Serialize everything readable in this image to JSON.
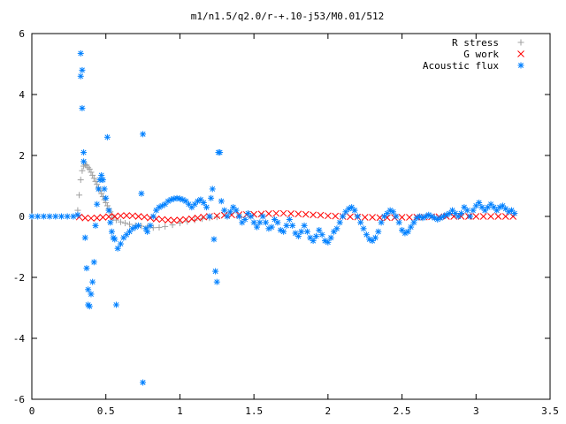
{
  "chart_data": {
    "type": "scatter",
    "title": "m1/n1.5/q2.0/r-+.10-j53/M0.01/512",
    "xlabel": "",
    "ylabel": "",
    "xlim": [
      0,
      3.5
    ],
    "ylim": [
      -6,
      6
    ],
    "x_ticks": [
      "0",
      "0.5",
      "1",
      "1.5",
      "2",
      "2.5",
      "3",
      "3.5"
    ],
    "y_ticks": [
      "6",
      "4",
      "2",
      "0",
      "-2",
      "-4",
      "-6"
    ],
    "legend_position": "top-right",
    "grid": false,
    "series": [
      {
        "name": "R stress",
        "marker": "plus",
        "color": "#a0a0a0",
        "points": [
          [
            0.31,
            0.2
          ],
          [
            0.32,
            0.7
          ],
          [
            0.33,
            1.2
          ],
          [
            0.34,
            1.5
          ],
          [
            0.35,
            1.65
          ],
          [
            0.36,
            1.7
          ],
          [
            0.37,
            1.68
          ],
          [
            0.38,
            1.6
          ],
          [
            0.39,
            1.55
          ],
          [
            0.4,
            1.45
          ],
          [
            0.41,
            1.35
          ],
          [
            0.42,
            1.25
          ],
          [
            0.43,
            1.15
          ],
          [
            0.44,
            1.05
          ],
          [
            0.45,
            0.95
          ],
          [
            0.46,
            0.85
          ],
          [
            0.47,
            0.75
          ],
          [
            0.48,
            0.65
          ],
          [
            0.49,
            0.55
          ],
          [
            0.5,
            0.45
          ],
          [
            0.51,
            0.35
          ],
          [
            0.52,
            0.25
          ],
          [
            0.53,
            0.15
          ],
          [
            0.54,
            0.05
          ],
          [
            0.55,
            -0.05
          ],
          [
            0.57,
            -0.12
          ],
          [
            0.6,
            -0.18
          ],
          [
            0.63,
            -0.22
          ],
          [
            0.66,
            -0.26
          ],
          [
            0.7,
            -0.3
          ],
          [
            0.74,
            -0.32
          ],
          [
            0.78,
            -0.35
          ],
          [
            0.82,
            -0.37
          ],
          [
            0.86,
            -0.36
          ],
          [
            0.9,
            -0.33
          ],
          [
            0.95,
            -0.28
          ],
          [
            1.0,
            -0.22
          ],
          [
            1.05,
            -0.17
          ],
          [
            1.1,
            -0.12
          ],
          [
            1.15,
            -0.08
          ],
          [
            1.2,
            -0.05
          ],
          [
            1.25,
            -0.02
          ]
        ]
      },
      {
        "name": "G work",
        "marker": "cross",
        "color": "#ff0000",
        "points": [
          [
            0.32,
            -0.02
          ],
          [
            0.36,
            -0.05
          ],
          [
            0.4,
            -0.06
          ],
          [
            0.44,
            -0.05
          ],
          [
            0.48,
            -0.03
          ],
          [
            0.52,
            -0.01
          ],
          [
            0.56,
            0.0
          ],
          [
            0.6,
            0.02
          ],
          [
            0.64,
            0.03
          ],
          [
            0.68,
            0.02
          ],
          [
            0.72,
            0.0
          ],
          [
            0.76,
            -0.02
          ],
          [
            0.8,
            -0.05
          ],
          [
            0.84,
            -0.08
          ],
          [
            0.88,
            -0.1
          ],
          [
            0.92,
            -0.12
          ],
          [
            0.96,
            -0.13
          ],
          [
            1.0,
            -0.12
          ],
          [
            1.04,
            -0.1
          ],
          [
            1.08,
            -0.08
          ],
          [
            1.12,
            -0.05
          ],
          [
            1.16,
            -0.02
          ],
          [
            1.2,
            0.0
          ],
          [
            1.25,
            0.02
          ],
          [
            1.3,
            0.04
          ],
          [
            1.35,
            0.05
          ],
          [
            1.4,
            0.06
          ],
          [
            1.45,
            0.06
          ],
          [
            1.5,
            0.07
          ],
          [
            1.55,
            0.08
          ],
          [
            1.6,
            0.09
          ],
          [
            1.65,
            0.1
          ],
          [
            1.7,
            0.1
          ],
          [
            1.75,
            0.09
          ],
          [
            1.8,
            0.08
          ],
          [
            1.85,
            0.07
          ],
          [
            1.9,
            0.05
          ],
          [
            1.95,
            0.04
          ],
          [
            2.0,
            0.02
          ],
          [
            2.05,
            0.01
          ],
          [
            2.1,
            0.0
          ],
          [
            2.15,
            -0.01
          ],
          [
            2.2,
            -0.02
          ],
          [
            2.25,
            -0.03
          ],
          [
            2.3,
            -0.03
          ],
          [
            2.35,
            -0.04
          ],
          [
            2.4,
            -0.04
          ],
          [
            2.45,
            -0.04
          ],
          [
            2.5,
            -0.03
          ],
          [
            2.55,
            -0.03
          ],
          [
            2.6,
            -0.02
          ],
          [
            2.65,
            -0.02
          ],
          [
            2.7,
            -0.01
          ],
          [
            2.75,
            -0.01
          ],
          [
            2.8,
            0.0
          ],
          [
            2.85,
            0.0
          ],
          [
            2.9,
            0.0
          ],
          [
            2.95,
            0.0
          ],
          [
            3.0,
            0.0
          ],
          [
            3.05,
            0.0
          ],
          [
            3.1,
            0.0
          ],
          [
            3.15,
            0.0
          ],
          [
            3.2,
            0.0
          ],
          [
            3.25,
            0.0
          ]
        ]
      },
      {
        "name": "Acoustic flux",
        "marker": "star",
        "color": "#0080ff",
        "points": [
          [
            0.0,
            0.0
          ],
          [
            0.04,
            0.0
          ],
          [
            0.08,
            0.0
          ],
          [
            0.12,
            0.0
          ],
          [
            0.16,
            0.0
          ],
          [
            0.2,
            0.0
          ],
          [
            0.24,
            0.0
          ],
          [
            0.28,
            0.0
          ],
          [
            0.31,
            0.05
          ],
          [
            0.33,
            4.6
          ],
          [
            0.33,
            5.35
          ],
          [
            0.34,
            4.8
          ],
          [
            0.34,
            3.55
          ],
          [
            0.35,
            2.1
          ],
          [
            0.35,
            1.8
          ],
          [
            0.36,
            -0.7
          ],
          [
            0.37,
            -1.7
          ],
          [
            0.38,
            -2.4
          ],
          [
            0.38,
            -2.9
          ],
          [
            0.39,
            -2.95
          ],
          [
            0.4,
            -2.55
          ],
          [
            0.41,
            -2.15
          ],
          [
            0.42,
            -1.5
          ],
          [
            0.43,
            -0.3
          ],
          [
            0.44,
            0.4
          ],
          [
            0.45,
            0.9
          ],
          [
            0.46,
            1.2
          ],
          [
            0.47,
            1.35
          ],
          [
            0.48,
            1.2
          ],
          [
            0.49,
            0.9
          ],
          [
            0.5,
            0.6
          ],
          [
            0.51,
            2.6
          ],
          [
            0.52,
            0.2
          ],
          [
            0.53,
            -0.2
          ],
          [
            0.54,
            -0.5
          ],
          [
            0.55,
            -0.7
          ],
          [
            0.56,
            -0.75
          ],
          [
            0.57,
            -2.9
          ],
          [
            0.58,
            -1.05
          ],
          [
            0.6,
            -0.9
          ],
          [
            0.62,
            -0.7
          ],
          [
            0.64,
            -0.6
          ],
          [
            0.66,
            -0.5
          ],
          [
            0.68,
            -0.4
          ],
          [
            0.7,
            -0.35
          ],
          [
            0.72,
            -0.3
          ],
          [
            0.74,
            0.75
          ],
          [
            0.75,
            2.7
          ],
          [
            0.75,
            -5.45
          ],
          [
            0.77,
            -0.4
          ],
          [
            0.78,
            -0.5
          ],
          [
            0.8,
            -0.3
          ],
          [
            0.82,
            0.0
          ],
          [
            0.84,
            0.2
          ],
          [
            0.86,
            0.3
          ],
          [
            0.88,
            0.35
          ],
          [
            0.9,
            0.4
          ],
          [
            0.92,
            0.5
          ],
          [
            0.94,
            0.55
          ],
          [
            0.96,
            0.58
          ],
          [
            0.98,
            0.6
          ],
          [
            1.0,
            0.58
          ],
          [
            1.02,
            0.55
          ],
          [
            1.04,
            0.5
          ],
          [
            1.06,
            0.4
          ],
          [
            1.08,
            0.3
          ],
          [
            1.1,
            0.4
          ],
          [
            1.12,
            0.5
          ],
          [
            1.14,
            0.55
          ],
          [
            1.16,
            0.45
          ],
          [
            1.18,
            0.3
          ],
          [
            1.2,
            0.0
          ],
          [
            1.21,
            0.6
          ],
          [
            1.22,
            0.9
          ],
          [
            1.23,
            -0.75
          ],
          [
            1.24,
            -1.8
          ],
          [
            1.25,
            -2.15
          ],
          [
            1.26,
            2.1
          ],
          [
            1.27,
            2.1
          ],
          [
            1.28,
            0.5
          ],
          [
            1.3,
            0.2
          ],
          [
            1.32,
            0.0
          ],
          [
            1.34,
            0.15
          ],
          [
            1.36,
            0.3
          ],
          [
            1.38,
            0.2
          ],
          [
            1.4,
            0.0
          ],
          [
            1.42,
            -0.2
          ],
          [
            1.44,
            -0.1
          ],
          [
            1.46,
            0.1
          ],
          [
            1.48,
            0.0
          ],
          [
            1.5,
            -0.2
          ],
          [
            1.52,
            -0.35
          ],
          [
            1.54,
            -0.2
          ],
          [
            1.56,
            0.0
          ],
          [
            1.58,
            -0.2
          ],
          [
            1.6,
            -0.4
          ],
          [
            1.62,
            -0.35
          ],
          [
            1.64,
            -0.1
          ],
          [
            1.66,
            -0.2
          ],
          [
            1.68,
            -0.45
          ],
          [
            1.7,
            -0.5
          ],
          [
            1.72,
            -0.3
          ],
          [
            1.74,
            -0.1
          ],
          [
            1.76,
            -0.3
          ],
          [
            1.78,
            -0.55
          ],
          [
            1.8,
            -0.65
          ],
          [
            1.82,
            -0.5
          ],
          [
            1.84,
            -0.3
          ],
          [
            1.86,
            -0.5
          ],
          [
            1.88,
            -0.7
          ],
          [
            1.9,
            -0.8
          ],
          [
            1.92,
            -0.65
          ],
          [
            1.94,
            -0.45
          ],
          [
            1.96,
            -0.6
          ],
          [
            1.98,
            -0.8
          ],
          [
            2.0,
            -0.85
          ],
          [
            2.02,
            -0.7
          ],
          [
            2.04,
            -0.5
          ],
          [
            2.06,
            -0.4
          ],
          [
            2.08,
            -0.2
          ],
          [
            2.1,
            0.0
          ],
          [
            2.12,
            0.15
          ],
          [
            2.14,
            0.25
          ],
          [
            2.16,
            0.3
          ],
          [
            2.18,
            0.2
          ],
          [
            2.2,
            0.0
          ],
          [
            2.22,
            -0.2
          ],
          [
            2.24,
            -0.4
          ],
          [
            2.26,
            -0.6
          ],
          [
            2.28,
            -0.75
          ],
          [
            2.3,
            -0.8
          ],
          [
            2.32,
            -0.7
          ],
          [
            2.34,
            -0.5
          ],
          [
            2.36,
            -0.2
          ],
          [
            2.38,
            0.0
          ],
          [
            2.4,
            0.1
          ],
          [
            2.42,
            0.2
          ],
          [
            2.44,
            0.15
          ],
          [
            2.46,
            0.0
          ],
          [
            2.48,
            -0.2
          ],
          [
            2.5,
            -0.45
          ],
          [
            2.52,
            -0.55
          ],
          [
            2.54,
            -0.5
          ],
          [
            2.56,
            -0.35
          ],
          [
            2.58,
            -0.2
          ],
          [
            2.6,
            -0.05
          ],
          [
            2.62,
            0.0
          ],
          [
            2.64,
            -0.05
          ],
          [
            2.66,
            0.0
          ],
          [
            2.68,
            0.05
          ],
          [
            2.7,
            0.0
          ],
          [
            2.72,
            -0.05
          ],
          [
            2.74,
            -0.1
          ],
          [
            2.76,
            -0.05
          ],
          [
            2.78,
            0.0
          ],
          [
            2.8,
            0.05
          ],
          [
            2.82,
            0.1
          ],
          [
            2.84,
            0.2
          ],
          [
            2.86,
            0.1
          ],
          [
            2.88,
            0.0
          ],
          [
            2.9,
            0.1
          ],
          [
            2.92,
            0.3
          ],
          [
            2.94,
            0.2
          ],
          [
            2.96,
            0.0
          ],
          [
            2.98,
            0.2
          ],
          [
            3.0,
            0.35
          ],
          [
            3.02,
            0.45
          ],
          [
            3.04,
            0.3
          ],
          [
            3.06,
            0.2
          ],
          [
            3.08,
            0.3
          ],
          [
            3.1,
            0.4
          ],
          [
            3.12,
            0.3
          ],
          [
            3.14,
            0.2
          ],
          [
            3.16,
            0.3
          ],
          [
            3.18,
            0.35
          ],
          [
            3.2,
            0.25
          ],
          [
            3.22,
            0.15
          ],
          [
            3.24,
            0.2
          ],
          [
            3.26,
            0.1
          ]
        ]
      }
    ]
  }
}
